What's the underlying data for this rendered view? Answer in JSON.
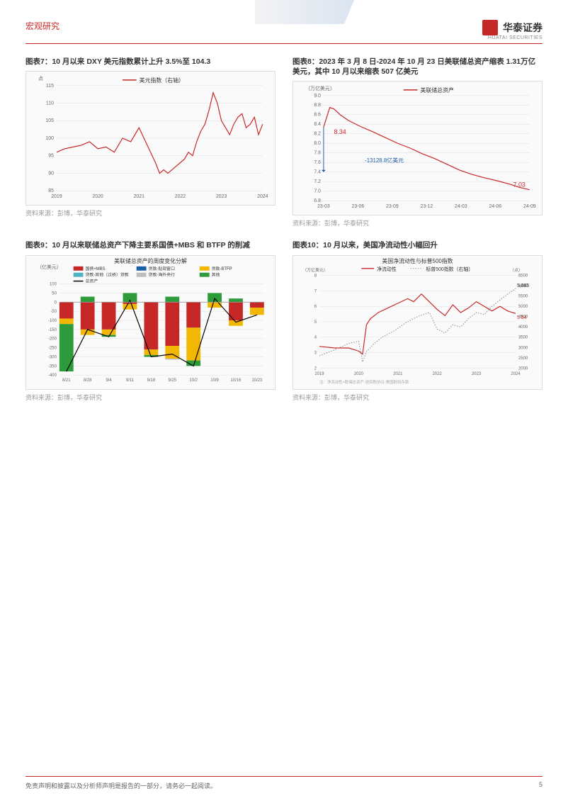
{
  "header": {
    "docType": "宏观研究",
    "brandName": "华泰证券",
    "brandSub": "HUATAI SECURITIES"
  },
  "footer": {
    "disclaimer": "免责声明和披露以及分析师声明是报告的一部分，请务必一起阅读。",
    "page": "5"
  },
  "colors": {
    "accent": "#c62828",
    "grid": "#e0e0e0",
    "text": "#666666",
    "series_red": "#c62828",
    "series_blue": "#1b5faa",
    "series_yellow": "#f2b700",
    "series_green": "#2e9b3a",
    "series_grey": "#bdbdbd",
    "series_cyan": "#4db6c6",
    "series_black": "#000000",
    "dotted": "#888888"
  },
  "chart7": {
    "title": "图表7：10 月以来 DXY 美元指数累计上升 3.5%至 104.3",
    "y_unit": "点",
    "legend": "美元指数（右轴）",
    "source": "资料来源：彭博，华泰研究",
    "x_ticks": [
      "2019",
      "2020",
      "2021",
      "2022",
      "2023",
      "2024"
    ],
    "y_ticks": [
      85,
      90,
      95,
      100,
      105,
      110,
      115
    ],
    "ylim": [
      85,
      115
    ],
    "line_color": "#c62828",
    "series": [
      [
        0,
        96
      ],
      [
        4,
        97
      ],
      [
        8,
        97.5
      ],
      [
        12,
        98
      ],
      [
        16,
        99
      ],
      [
        20,
        97
      ],
      [
        24,
        97.5
      ],
      [
        28,
        96
      ],
      [
        32,
        100
      ],
      [
        36,
        99
      ],
      [
        40,
        103
      ],
      [
        44,
        98
      ],
      [
        48,
        93
      ],
      [
        50,
        90
      ],
      [
        52,
        91
      ],
      [
        54,
        90
      ],
      [
        56,
        91
      ],
      [
        58,
        92
      ],
      [
        60,
        93
      ],
      [
        62,
        94
      ],
      [
        64,
        96
      ],
      [
        66,
        95
      ],
      [
        68,
        99
      ],
      [
        70,
        102
      ],
      [
        72,
        104
      ],
      [
        74,
        108
      ],
      [
        76,
        113
      ],
      [
        78,
        110
      ],
      [
        80,
        105
      ],
      [
        82,
        103
      ],
      [
        84,
        101
      ],
      [
        86,
        104
      ],
      [
        88,
        106
      ],
      [
        90,
        107
      ],
      [
        92,
        103
      ],
      [
        94,
        104
      ],
      [
        96,
        106
      ],
      [
        98,
        101
      ],
      [
        100,
        104
      ]
    ]
  },
  "chart8": {
    "title": "图表8：2023 年 3 月 8 日-2024 年 10 月 23 日美联储总资产缩表 1.31万亿美元，其中 10 月以来缩表 507 亿美元",
    "y_unit": "（万亿美元）",
    "legend": "美联储总资产",
    "source": "资料来源：彭博，华泰研究",
    "x_ticks": [
      "23-03",
      "23-06",
      "23-09",
      "23-12",
      "24-03",
      "24-06",
      "24-09"
    ],
    "y_ticks": [
      6.8,
      7.0,
      7.2,
      7.4,
      7.6,
      7.8,
      8.0,
      8.2,
      8.4,
      8.6,
      8.8,
      9.0
    ],
    "ylim": [
      6.8,
      9.0
    ],
    "line_color": "#c62828",
    "annot1": "8.34",
    "annot2": "-13128.8亿美元",
    "annot3": "7.03",
    "series": [
      [
        0,
        8.34
      ],
      [
        3,
        8.75
      ],
      [
        5,
        8.72
      ],
      [
        8,
        8.6
      ],
      [
        12,
        8.48
      ],
      [
        18,
        8.35
      ],
      [
        24,
        8.24
      ],
      [
        30,
        8.12
      ],
      [
        36,
        8.0
      ],
      [
        42,
        7.9
      ],
      [
        48,
        7.78
      ],
      [
        54,
        7.68
      ],
      [
        60,
        7.56
      ],
      [
        66,
        7.44
      ],
      [
        72,
        7.35
      ],
      [
        78,
        7.28
      ],
      [
        84,
        7.22
      ],
      [
        90,
        7.15
      ],
      [
        95,
        7.08
      ],
      [
        100,
        7.03
      ]
    ]
  },
  "chart9": {
    "title": "图表9：10 月以来联储总资产下降主要系国债+MBS 和 BTFP 的削减",
    "y_unit": "（亿美元）",
    "chart_label": "美联储总资产的周度变化分解",
    "source": "资料来源：彭博，华泰研究",
    "legend": [
      {
        "label": "国债+MBS",
        "color": "#c62828"
      },
      {
        "label": "贷款-贴现窗口",
        "color": "#1b5faa"
      },
      {
        "label": "贷款-BTFP",
        "color": "#f2b700"
      },
      {
        "label": "贷款-其他（过桥）贷款",
        "color": "#4db6c6"
      },
      {
        "label": "贷款-海外央行",
        "color": "#bdbdbd"
      },
      {
        "label": "其他",
        "color": "#2e9b3a"
      },
      {
        "label": "总资产",
        "color": "#000000"
      }
    ],
    "x_ticks": [
      "8/21",
      "8/28",
      "9/4",
      "9/11",
      "9/18",
      "9/25",
      "10/2",
      "10/9",
      "10/16",
      "10/23"
    ],
    "y_ticks": [
      -400,
      -350,
      -300,
      -250,
      -200,
      -150,
      -100,
      -50,
      0,
      50,
      100
    ],
    "ylim": [
      -400,
      100
    ],
    "stacks": [
      {
        "x": "8/21",
        "seg": [
          {
            "c": "#c62828",
            "v": -90
          },
          {
            "c": "#f2b700",
            "v": -30
          },
          {
            "c": "#2e9b3a",
            "v": -260
          }
        ],
        "total": -380
      },
      {
        "x": "8/28",
        "seg": [
          {
            "c": "#2e9b3a",
            "v": 30
          },
          {
            "c": "#c62828",
            "v": -150
          },
          {
            "c": "#f2b700",
            "v": -30
          }
        ],
        "total": -150
      },
      {
        "x": "9/4",
        "seg": [
          {
            "c": "#c62828",
            "v": -150
          },
          {
            "c": "#f2b700",
            "v": -30
          },
          {
            "c": "#2e9b3a",
            "v": -10
          }
        ],
        "total": -190
      },
      {
        "x": "9/11",
        "seg": [
          {
            "c": "#2e9b3a",
            "v": 50
          },
          {
            "c": "#c62828",
            "v": -10
          },
          {
            "c": "#f2b700",
            "v": -30
          }
        ],
        "total": 10
      },
      {
        "x": "9/18",
        "seg": [
          {
            "c": "#c62828",
            "v": -260
          },
          {
            "c": "#f2b700",
            "v": -30
          },
          {
            "c": "#2e9b3a",
            "v": -10
          }
        ],
        "total": -300
      },
      {
        "x": "9/25",
        "seg": [
          {
            "c": "#2e9b3a",
            "v": 30
          },
          {
            "c": "#c62828",
            "v": -240
          },
          {
            "c": "#f2b700",
            "v": -70
          },
          {
            "c": "#bdbdbd",
            "v": -5
          }
        ],
        "total": -285
      },
      {
        "x": "10/2",
        "seg": [
          {
            "c": "#c62828",
            "v": -140
          },
          {
            "c": "#f2b700",
            "v": -180
          },
          {
            "c": "#2e9b3a",
            "v": -30
          }
        ],
        "total": -350
      },
      {
        "x": "10/9",
        "seg": [
          {
            "c": "#2e9b3a",
            "v": 50
          },
          {
            "c": "#f2b700",
            "v": -30
          }
        ],
        "total": 20
      },
      {
        "x": "10/16",
        "seg": [
          {
            "c": "#2e9b3a",
            "v": 20
          },
          {
            "c": "#c62828",
            "v": -100
          },
          {
            "c": "#f2b700",
            "v": -30
          }
        ],
        "total": -110
      },
      {
        "x": "10/23",
        "seg": [
          {
            "c": "#c62828",
            "v": -30
          },
          {
            "c": "#f2b700",
            "v": -40
          }
        ],
        "total": -70
      }
    ]
  },
  "chart10": {
    "title": "图表10：10 月以来，美国净流动性小幅回升",
    "y_unit": "（万亿美元）",
    "y2_unit": "（点）",
    "chart_label": "美国净流动性与标普500指数",
    "source": "资料来源：彭博，华泰研究",
    "legend": [
      {
        "label": "净流动性",
        "style": "solid",
        "color": "#c62828"
      },
      {
        "label": "标普500指数（右轴）",
        "style": "dotted",
        "color": "#888888"
      }
    ],
    "note": "注：净流动性=联储总资产-逆回购协议-美国财政存款",
    "x_ticks": [
      "2019",
      "2020",
      "2021",
      "2022",
      "2023",
      "2024"
    ],
    "y_ticks": [
      2,
      3,
      4,
      5,
      6,
      7,
      8
    ],
    "y2_ticks": [
      2000,
      2500,
      3000,
      3500,
      4000,
      4500,
      5000,
      5500,
      6000,
      6500
    ],
    "ylim": [
      2,
      8
    ],
    "y2lim": [
      2000,
      6500
    ],
    "annot_sp": "5,865",
    "annot_liq": "5.54",
    "liq_series": [
      [
        0,
        3.4
      ],
      [
        8,
        3.3
      ],
      [
        15,
        3.3
      ],
      [
        20,
        3.1
      ],
      [
        22,
        2.9
      ],
      [
        24,
        4.8
      ],
      [
        26,
        5.2
      ],
      [
        30,
        5.6
      ],
      [
        35,
        5.9
      ],
      [
        40,
        6.2
      ],
      [
        45,
        6.5
      ],
      [
        48,
        6.3
      ],
      [
        52,
        6.8
      ],
      [
        56,
        6.3
      ],
      [
        60,
        5.8
      ],
      [
        64,
        5.4
      ],
      [
        68,
        6.1
      ],
      [
        72,
        5.6
      ],
      [
        76,
        5.9
      ],
      [
        80,
        6.3
      ],
      [
        84,
        6.0
      ],
      [
        88,
        5.7
      ],
      [
        92,
        6.0
      ],
      [
        96,
        5.7
      ],
      [
        100,
        5.54
      ]
    ],
    "sp_series": [
      [
        0,
        2600
      ],
      [
        8,
        2900
      ],
      [
        15,
        3200
      ],
      [
        20,
        3300
      ],
      [
        22,
        2300
      ],
      [
        24,
        2800
      ],
      [
        28,
        3200
      ],
      [
        32,
        3500
      ],
      [
        38,
        3800
      ],
      [
        44,
        4200
      ],
      [
        50,
        4500
      ],
      [
        56,
        4700
      ],
      [
        60,
        3900
      ],
      [
        64,
        3700
      ],
      [
        68,
        4100
      ],
      [
        72,
        4000
      ],
      [
        76,
        4400
      ],
      [
        80,
        4700
      ],
      [
        84,
        4600
      ],
      [
        88,
        5000
      ],
      [
        92,
        5300
      ],
      [
        96,
        5600
      ],
      [
        100,
        5865
      ]
    ]
  }
}
